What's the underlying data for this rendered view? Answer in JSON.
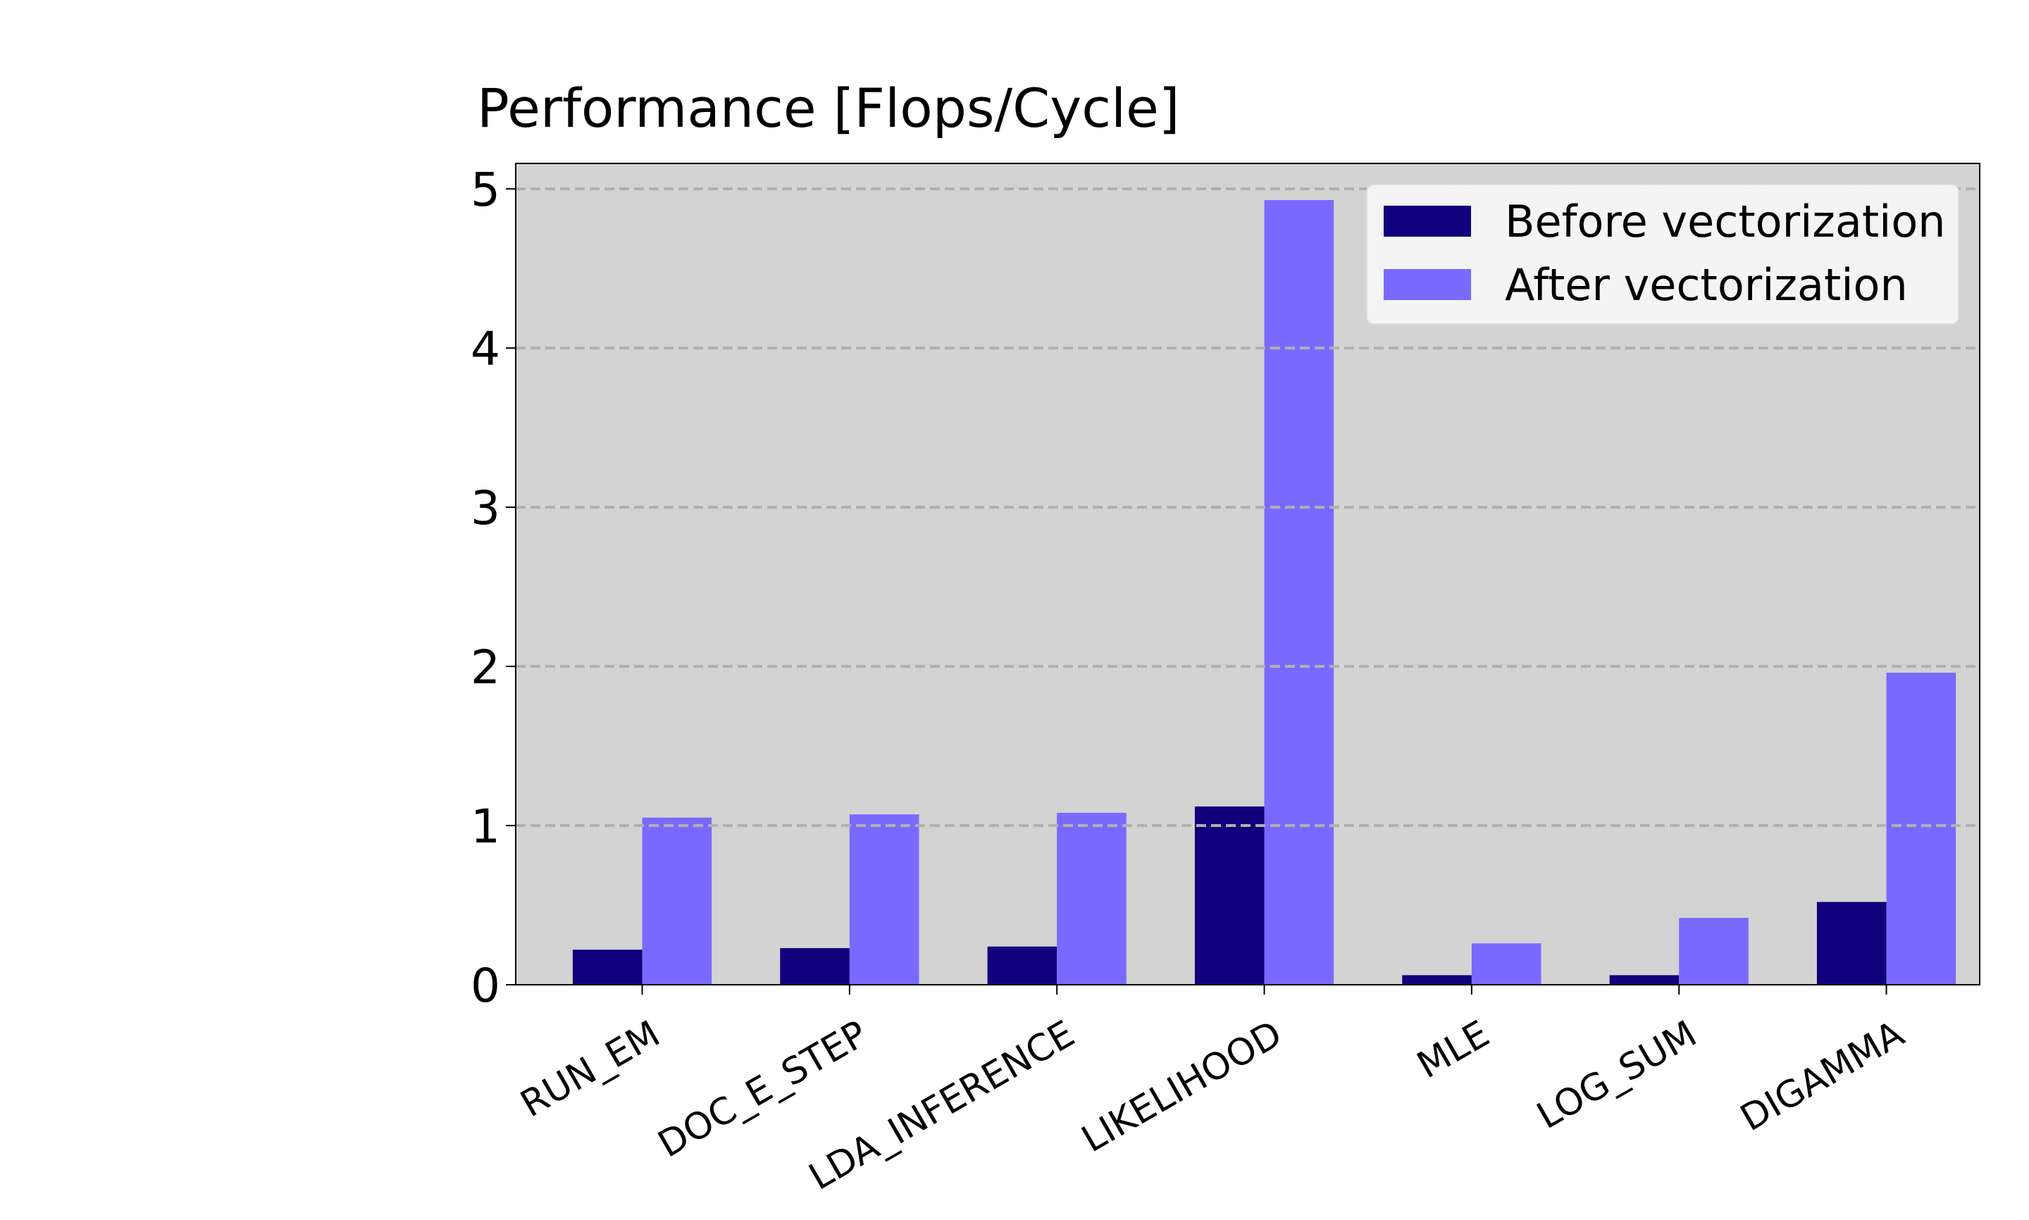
{
  "chart_data": {
    "type": "bar",
    "title": "Performance [Flops/Cycle]",
    "xlabel": "",
    "ylabel": "",
    "categories": [
      "RUN_EM",
      "DOC_E_STEP",
      "LDA_INFERENCE",
      "LIKELIHOOD",
      "MLE",
      "LOG_SUM",
      "DIGAMMA"
    ],
    "series": [
      {
        "name": "Before vectorization",
        "color": "#11007b",
        "values": [
          0.22,
          0.23,
          0.24,
          1.12,
          0.06,
          0.06,
          0.52
        ]
      },
      {
        "name": "After vectorization",
        "color": "#786aff",
        "values": [
          1.05,
          1.07,
          1.08,
          4.93,
          0.26,
          0.42,
          1.96
        ]
      }
    ],
    "ylim": [
      0,
      5.16
    ],
    "yticks": [
      0,
      1,
      2,
      3,
      4,
      5
    ],
    "ytick_labels": [
      "0",
      "1",
      "2",
      "3",
      "4",
      "5"
    ],
    "grid": "y-dashed",
    "legend_position": "top-right",
    "plot_background": "#d3d3d3",
    "grid_color": "#b0b0b0"
  }
}
